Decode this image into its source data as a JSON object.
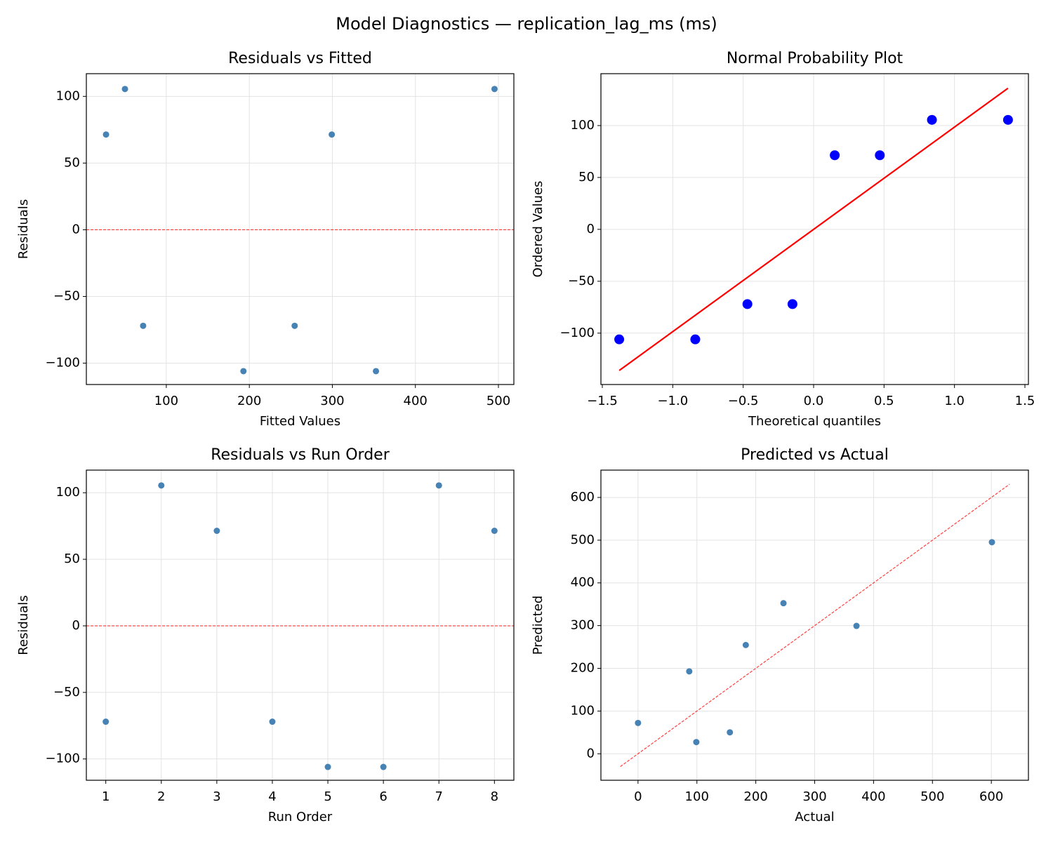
{
  "title": "Model Diagnostics — replication_lag_ms (ms)",
  "chart_data": [
    {
      "type": "scatter",
      "title": "Residuals vs Fitted",
      "xlabel": "Fitted Values",
      "ylabel": "Residuals",
      "x": [
        27.4,
        50.2,
        72.1,
        192.9,
        254.6,
        299.3,
        352.5,
        495.3
      ],
      "y": [
        71.4,
        105.5,
        -72,
        -106,
        -72,
        71.4,
        -106,
        105.5
      ],
      "color": "#4682b4",
      "xlim": [
        3.7,
        518.6
      ],
      "ylim": [
        -116,
        117
      ],
      "xticks": [
        100,
        200,
        300,
        400,
        500
      ],
      "yticks": [
        {
          "value": -100,
          "label": "−100"
        },
        {
          "value": -50,
          "label": "−50"
        },
        0,
        50,
        100
      ],
      "grid": true,
      "hline": {
        "y": 0,
        "color": "#ff0000",
        "dash": true
      }
    },
    {
      "type": "scatter",
      "title": "Normal Probability Plot",
      "xlabel": "Theoretical quantiles",
      "ylabel": "Ordered Values",
      "x": [
        -1.38,
        -0.84,
        -0.47,
        -0.15,
        0.15,
        0.47,
        0.84,
        1.38
      ],
      "y": [
        -106,
        -106,
        -72,
        -72,
        71.4,
        71.4,
        105.5,
        105.5
      ],
      "color": "#0000ff",
      "xlim": [
        -1.51,
        1.525
      ],
      "ylim": [
        -149.5,
        150
      ],
      "xticks": [
        {
          "value": -1.5,
          "label": "−1.5"
        },
        {
          "value": -1,
          "label": "−1.0"
        },
        {
          "value": -0.5,
          "label": "−0.5"
        },
        {
          "value": 0,
          "label": "0.0"
        },
        0.5,
        {
          "value": 1,
          "label": "1.0"
        },
        1.5
      ],
      "yticks": [
        {
          "value": -100,
          "label": "−100"
        },
        {
          "value": -50,
          "label": "−50"
        },
        0,
        50,
        100
      ],
      "grid": true,
      "line": {
        "x": [
          -1.38,
          1.38
        ],
        "y": [
          -136,
          136
        ],
        "color": "#ff0000",
        "dash": false
      }
    },
    {
      "type": "scatter",
      "title": "Residuals vs Run Order",
      "xlabel": "Run Order",
      "ylabel": "Residuals",
      "x": [
        1,
        2,
        3,
        4,
        5,
        6,
        7,
        8
      ],
      "y": [
        -72,
        105.5,
        71.4,
        -72,
        -106,
        -106,
        105.5,
        71.4
      ],
      "color": "#4682b4",
      "xlim": [
        0.65,
        8.35
      ],
      "ylim": [
        -116,
        117
      ],
      "xticks": [
        1,
        2,
        3,
        4,
        5,
        6,
        7,
        8
      ],
      "yticks": [
        {
          "value": -100,
          "label": "−100"
        },
        {
          "value": -50,
          "label": "−50"
        },
        0,
        50,
        100
      ],
      "grid": true,
      "hline": {
        "y": 0,
        "color": "#ff0000",
        "dash": true
      }
    },
    {
      "type": "scatter",
      "title": "Predicted vs Actual",
      "xlabel": "Actual",
      "ylabel": "Predicted",
      "x": [
        0,
        87,
        99,
        156,
        183,
        247,
        371,
        601
      ],
      "y": [
        72.1,
        192.9,
        27.4,
        50.2,
        254.6,
        352.5,
        299.3,
        495.3
      ],
      "color": "#4682b4",
      "xlim": [
        -63,
        663
      ],
      "ylim": [
        -62,
        664
      ],
      "xticks": [
        0,
        100,
        200,
        300,
        400,
        500,
        600
      ],
      "yticks": [
        0,
        100,
        200,
        300,
        400,
        500,
        600
      ],
      "grid": true,
      "line": {
        "x": [
          -30,
          631
        ],
        "y": [
          -30,
          631
        ],
        "color": "#ff0000",
        "dash": true
      }
    }
  ]
}
